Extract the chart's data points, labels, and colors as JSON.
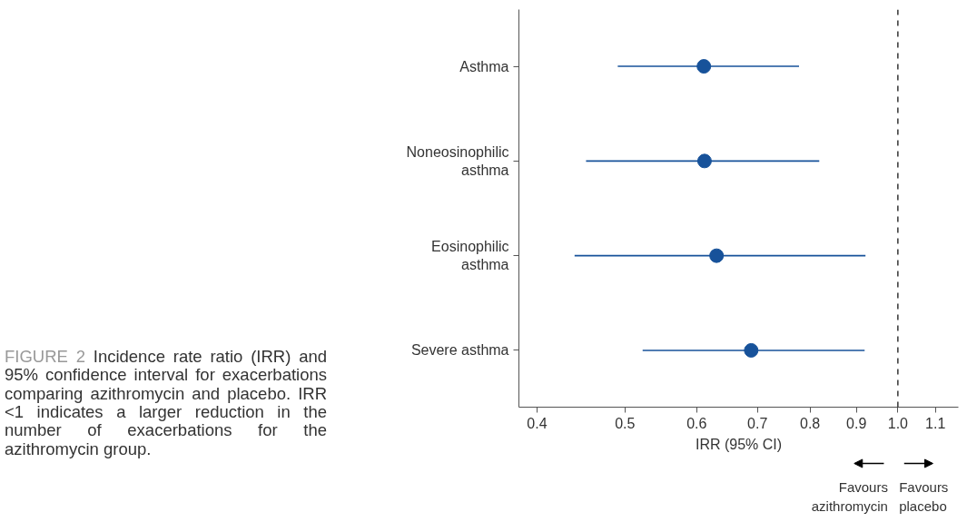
{
  "chart_data": {
    "type": "scatter",
    "orientation": "horizontal",
    "categories": [
      "Asthma",
      "Noneosinophilic asthma",
      "Eosinophilic asthma",
      "Severe asthma"
    ],
    "color": "#17529a",
    "values": [
      0.611,
      0.612,
      0.631,
      0.689
    ],
    "errors": [
      [
        0.491,
        0.778
      ],
      [
        0.453,
        0.819
      ],
      [
        0.44,
        0.921
      ],
      [
        0.523,
        0.919
      ]
    ],
    "xlim": [
      0.382,
      1.166
    ],
    "xticks": [
      0.4,
      0.5,
      0.6,
      0.7,
      0.8,
      0.9,
      {
        "value": 1.0,
        "label": "1.0"
      },
      1.1
    ],
    "log": "x",
    "grid": false,
    "marker": "circle",
    "xlabel": "IRR (95% CI)",
    "ref_lines": [
      {
        "axis": "x",
        "value": 1.0,
        "color": "#000000",
        "line_style": "dashed"
      }
    ],
    "annotations": [
      "FIGURE 2 Incidence rate ratio (IRR) and 95% confidence interval for exacerbations comparing azithromycin and placebo. IRR <1 indicates a larger reduction in the number of exacerbations for the azithromycin group.",
      "Favours azithromycin",
      "Favours placebo"
    ]
  }
}
